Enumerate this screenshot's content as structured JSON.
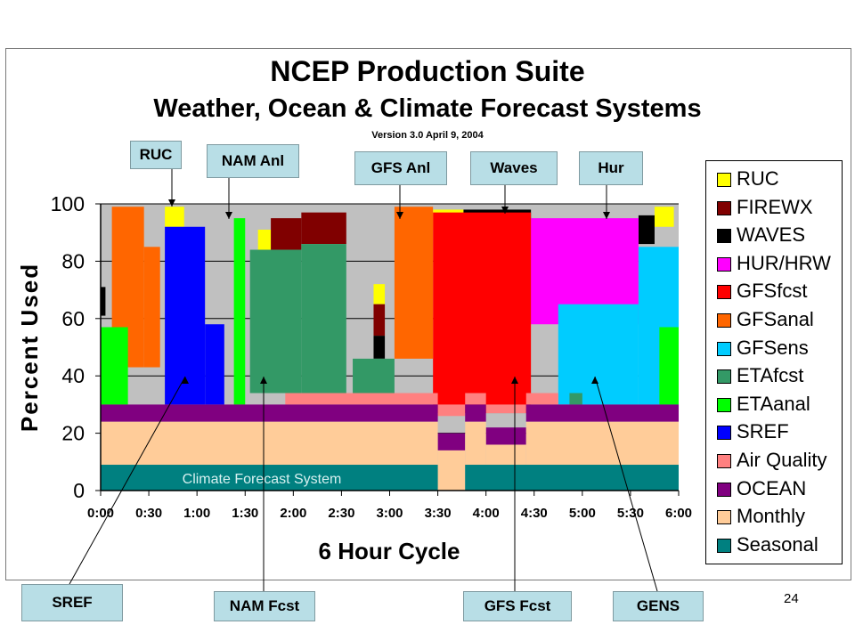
{
  "slide": {
    "title": "NCEP Production Suite",
    "subtitle": "Weather, Ocean & Climate Forecast Systems",
    "version": "Version 3.0 April 9, 2004",
    "page_number": "24"
  },
  "callouts": {
    "ruc": "RUC",
    "nam_anl": "NAM Anl",
    "gfs_anl": "GFS Anl",
    "waves": "Waves",
    "hur": "Hur",
    "sref": "SREF",
    "nam_fcst": "NAM Fcst",
    "gfs_fcst": "GFS Fcst",
    "gens": "GENS"
  },
  "chart_data": {
    "type": "area",
    "title": "",
    "xlabel": "6 Hour Cycle",
    "ylabel": "Percent Used",
    "xlim": [
      "0:00",
      "6:00"
    ],
    "ylim": [
      0,
      100
    ],
    "x_ticks": [
      "0:00",
      "0:30",
      "1:00",
      "1:30",
      "2:00",
      "2:30",
      "3:00",
      "3:30",
      "4:00",
      "4:30",
      "5:00",
      "5:30",
      "6:00"
    ],
    "y_ticks": [
      0,
      20,
      40,
      60,
      80,
      100
    ],
    "grid": "horizontal",
    "legend_position": "right",
    "annotation": "Climate Forecast System",
    "series": [
      {
        "name": "RUC",
        "color": "#FFFF00",
        "blocks": [
          {
            "x0": "0:40",
            "x1": "0:52",
            "y0": 92,
            "y1": 99
          },
          {
            "x0": "1:38",
            "x1": "1:46",
            "y0": 84,
            "y1": 91
          },
          {
            "x0": "2:50",
            "x1": "2:57",
            "y0": 65,
            "y1": 72
          },
          {
            "x0": "3:27",
            "x1": "3:46",
            "y0": 91,
            "y1": 98
          },
          {
            "x0": "4:28",
            "x1": "4:45",
            "y0": 86,
            "y1": 93
          },
          {
            "x0": "5:45",
            "x1": "5:57",
            "y0": 92,
            "y1": 99
          }
        ]
      },
      {
        "name": "FIREWX",
        "color": "#800000",
        "blocks": [
          {
            "x0": "1:46",
            "x1": "2:05",
            "y0": 84,
            "y1": 95
          },
          {
            "x0": "2:05",
            "x1": "2:33",
            "y0": 86,
            "y1": 97
          },
          {
            "x0": "2:50",
            "x1": "2:57",
            "y0": 54,
            "y1": 65
          }
        ]
      },
      {
        "name": "WAVES",
        "color": "#000000",
        "blocks": [
          {
            "x0": "0:00",
            "x1": "0:03",
            "y0": 61,
            "y1": 71
          },
          {
            "x0": "2:50",
            "x1": "2:57",
            "y0": 46,
            "y1": 54
          },
          {
            "x0": "3:46",
            "x1": "4:28",
            "y0": 91,
            "y1": 98
          },
          {
            "x0": "5:35",
            "x1": "5:45",
            "y0": 86,
            "y1": 96
          },
          {
            "x0": "5:57",
            "x1": "6:00",
            "y0": 61,
            "y1": 71
          }
        ]
      },
      {
        "name": "HUR/HRW",
        "color": "#FF00FF",
        "blocks": [
          {
            "x0": "4:08",
            "x1": "5:35",
            "y0": 58,
            "y1": 95
          }
        ]
      },
      {
        "name": "GFSfcst",
        "color": "#FF0000",
        "blocks": [
          {
            "x0": "3:27",
            "x1": "4:28",
            "y0": 27,
            "y1": 97
          }
        ]
      },
      {
        "name": "GFSanal",
        "color": "#FF6600",
        "blocks": [
          {
            "x0": "0:07",
            "x1": "0:27",
            "y0": 43,
            "y1": 99
          },
          {
            "x0": "0:27",
            "x1": "0:37",
            "y0": 43,
            "y1": 85
          },
          {
            "x0": "3:03",
            "x1": "3:27",
            "y0": 46,
            "y1": 99
          }
        ]
      },
      {
        "name": "GFSens",
        "color": "#00CCFF",
        "blocks": [
          {
            "x0": "4:45",
            "x1": "5:35",
            "y0": 30,
            "y1": 65
          },
          {
            "x0": "5:35",
            "x1": "6:00",
            "y0": 30,
            "y1": 85
          }
        ]
      },
      {
        "name": "ETAfcst",
        "color": "#339966",
        "blocks": [
          {
            "x0": "1:33",
            "x1": "2:05",
            "y0": 34,
            "y1": 84
          },
          {
            "x0": "2:05",
            "x1": "2:33",
            "y0": 34,
            "y1": 86
          },
          {
            "x0": "2:37",
            "x1": "3:03",
            "y0": 34,
            "y1": 46
          },
          {
            "x0": "4:52",
            "x1": "5:00",
            "y0": 30,
            "y1": 34
          }
        ]
      },
      {
        "name": "ETAanal",
        "color": "#00FF00",
        "blocks": [
          {
            "x0": "0:00",
            "x1": "0:17",
            "y0": 30,
            "y1": 57
          },
          {
            "x0": "1:23",
            "x1": "1:30",
            "y0": 30,
            "y1": 95
          },
          {
            "x0": "5:48",
            "x1": "6:00",
            "y0": 30,
            "y1": 57
          }
        ]
      },
      {
        "name": "SREF",
        "color": "#0000FF",
        "blocks": [
          {
            "x0": "0:40",
            "x1": "1:05",
            "y0": 30,
            "y1": 92
          },
          {
            "x0": "1:05",
            "x1": "1:17",
            "y0": 30,
            "y1": 58
          }
        ]
      },
      {
        "name": "Air Quality",
        "color": "#FF8080",
        "blocks": [
          {
            "x0": "1:55",
            "x1": "3:30",
            "y0": 30,
            "y1": 34
          },
          {
            "x0": "3:30",
            "x1": "3:47",
            "y0": 26,
            "y1": 30
          },
          {
            "x0": "3:47",
            "x1": "4:00",
            "y0": 30,
            "y1": 34
          },
          {
            "x0": "4:00",
            "x1": "4:25",
            "y0": 27,
            "y1": 30
          },
          {
            "x0": "4:25",
            "x1": "4:45",
            "y0": 30,
            "y1": 34
          },
          {
            "x0": "4:45",
            "x1": "4:52",
            "y0": 26,
            "y1": 30
          }
        ]
      },
      {
        "name": "OCEAN",
        "color": "#800080",
        "blocks": [
          {
            "x0": "0:00",
            "x1": "3:30",
            "y0": 24,
            "y1": 30
          },
          {
            "x0": "3:30",
            "x1": "3:47",
            "y0": 14,
            "y1": 20
          },
          {
            "x0": "3:47",
            "x1": "4:00",
            "y0": 24,
            "y1": 30
          },
          {
            "x0": "4:00",
            "x1": "4:25",
            "y0": 16,
            "y1": 22
          },
          {
            "x0": "4:25",
            "x1": "6:00",
            "y0": 24,
            "y1": 30
          }
        ]
      },
      {
        "name": "Monthly",
        "color": "#FFCC99",
        "blocks": [
          {
            "x0": "0:00",
            "x1": "3:30",
            "y0": 9,
            "y1": 24
          },
          {
            "x0": "3:30",
            "x1": "3:47",
            "y0": 0,
            "y1": 14
          },
          {
            "x0": "3:47",
            "x1": "4:00",
            "y0": 9,
            "y1": 24
          },
          {
            "x0": "4:00",
            "x1": "4:25",
            "y0": 9,
            "y1": 16
          },
          {
            "x0": "4:25",
            "x1": "6:00",
            "y0": 9,
            "y1": 24
          }
        ]
      },
      {
        "name": "Seasonal",
        "color": "#008080",
        "blocks": [
          {
            "x0": "0:00",
            "x1": "3:30",
            "y0": 0,
            "y1": 9
          },
          {
            "x0": "3:47",
            "x1": "6:00",
            "y0": 0,
            "y1": 9
          }
        ]
      }
    ]
  }
}
